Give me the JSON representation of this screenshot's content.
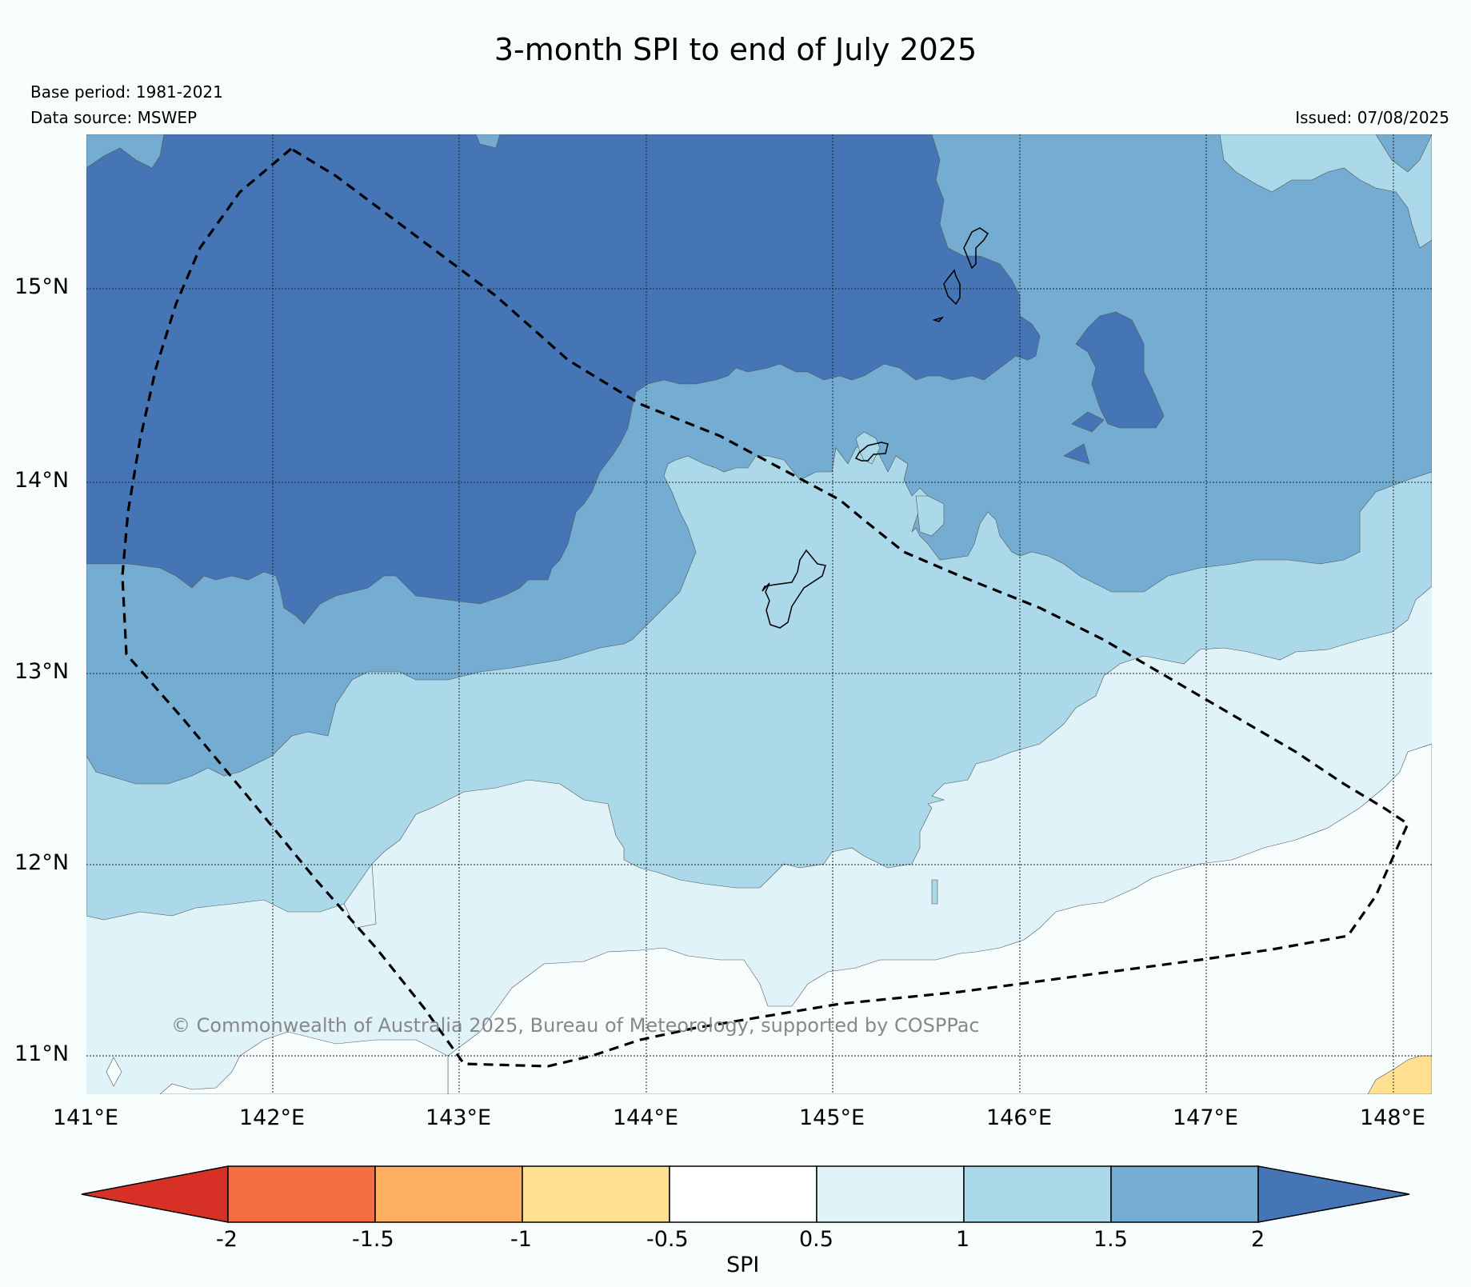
{
  "title": "3-month SPI to end of July 2025",
  "meta": {
    "base_period": "Base period: 1981-2021",
    "data_source": "Data source: MSWEP",
    "issued": "Issued: 07/08/2025"
  },
  "copyright": "© Commonwealth of Australia 2025, Bureau of Meteorology, supported by COSPPac",
  "axes": {
    "lon_labels": [
      "141°E",
      "142°E",
      "143°E",
      "144°E",
      "145°E",
      "146°E",
      "147°E",
      "148°E"
    ],
    "lat_labels": [
      "15°N",
      "14°N",
      "13°N",
      "12°N",
      "11°N"
    ]
  },
  "colorbar": {
    "label": "SPI",
    "ticks": [
      "-2",
      "-1.5",
      "-1",
      "-0.5",
      "0.5",
      "1",
      "1.5",
      "2"
    ],
    "colors": [
      "#d73027",
      "#f46d43",
      "#fdae61",
      "#fee090",
      "#ffffff",
      "#e0f3f8",
      "#abd9e9",
      "#74add1",
      "#4575b4"
    ]
  }
}
